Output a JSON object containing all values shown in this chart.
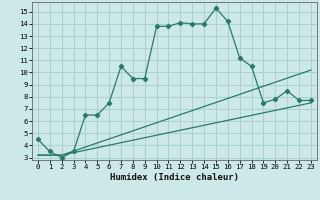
{
  "title": "",
  "xlabel": "Humidex (Indice chaleur)",
  "background_color": "#cce8e8",
  "grid_color": "#aad0d0",
  "line_color": "#2a7a6a",
  "xlim": [
    -0.5,
    23.5
  ],
  "ylim": [
    2.8,
    15.8
  ],
  "xticks": [
    0,
    1,
    2,
    3,
    4,
    5,
    6,
    7,
    8,
    9,
    10,
    11,
    12,
    13,
    14,
    15,
    16,
    17,
    18,
    19,
    20,
    21,
    22,
    23
  ],
  "yticks": [
    3,
    4,
    5,
    6,
    7,
    8,
    9,
    10,
    11,
    12,
    13,
    14,
    15
  ],
  "line1_x": [
    0,
    1,
    2,
    3,
    4,
    5,
    6,
    7,
    8,
    9,
    10,
    11,
    12,
    13,
    14,
    15,
    16,
    17,
    18,
    19,
    20,
    21,
    22,
    23
  ],
  "line1_y": [
    4.5,
    3.5,
    3.0,
    3.5,
    6.5,
    6.5,
    7.5,
    10.5,
    9.5,
    9.5,
    13.8,
    13.8,
    14.1,
    14.0,
    14.0,
    15.3,
    14.2,
    11.2,
    10.5,
    7.5,
    7.8,
    8.5,
    7.7,
    7.7
  ],
  "line2_x": [
    0,
    2,
    23
  ],
  "line2_y": [
    3.2,
    3.2,
    10.2
  ],
  "line3_x": [
    0,
    2,
    23
  ],
  "line3_y": [
    3.2,
    3.2,
    7.5
  ],
  "xlabel_fontsize": 6.5,
  "tick_fontsize": 5.2
}
